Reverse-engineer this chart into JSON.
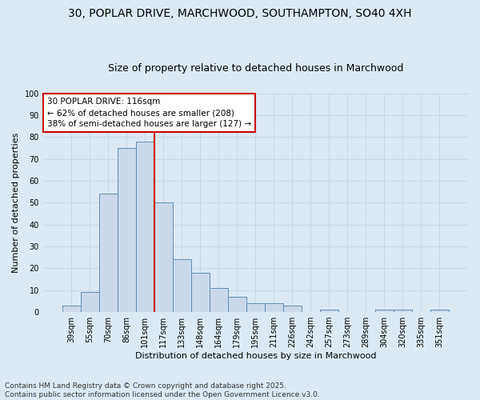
{
  "title_line1": "30, POPLAR DRIVE, MARCHWOOD, SOUTHAMPTON, SO40 4XH",
  "title_line2": "Size of property relative to detached houses in Marchwood",
  "xlabel": "Distribution of detached houses by size in Marchwood",
  "ylabel": "Number of detached properties",
  "categories": [
    "39sqm",
    "55sqm",
    "70sqm",
    "86sqm",
    "101sqm",
    "117sqm",
    "133sqm",
    "148sqm",
    "164sqm",
    "179sqm",
    "195sqm",
    "211sqm",
    "226sqm",
    "242sqm",
    "257sqm",
    "273sqm",
    "289sqm",
    "304sqm",
    "320sqm",
    "335sqm",
    "351sqm"
  ],
  "values": [
    3,
    9,
    54,
    75,
    78,
    50,
    24,
    18,
    11,
    7,
    4,
    4,
    3,
    0,
    1,
    0,
    0,
    1,
    1,
    0,
    1
  ],
  "bar_color": "#c9d9eb",
  "bar_edge_color": "#5b8db8",
  "vline_color": "#cc0000",
  "annotation_line1": "30 POPLAR DRIVE: 116sqm",
  "annotation_line2": "← 62% of detached houses are smaller (208)",
  "annotation_line3": "38% of semi-detached houses are larger (127) →",
  "annotation_box_color": "#cc0000",
  "ylim": [
    0,
    100
  ],
  "yticks": [
    0,
    10,
    20,
    30,
    40,
    50,
    60,
    70,
    80,
    90,
    100
  ],
  "grid_color": "#c8d8e8",
  "background_color": "#dce9f5",
  "plot_bg_color": "#dce9f5",
  "footer_text": "Contains HM Land Registry data © Crown copyright and database right 2025.\nContains public sector information licensed under the Open Government Licence v3.0.",
  "title_fontsize": 10,
  "subtitle_fontsize": 9,
  "axis_label_fontsize": 8,
  "tick_fontsize": 7,
  "annotation_fontsize": 7.5,
  "footer_fontsize": 6.5,
  "vline_bar_index": 5
}
